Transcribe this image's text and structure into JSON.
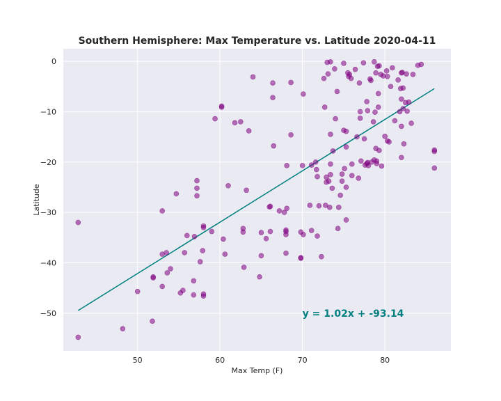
{
  "chart_data": {
    "type": "scatter",
    "title": "Southern Hemisphere: Max Temperature vs. Latitude 2020-04-11",
    "xlabel": "Max Temp (F)",
    "ylabel": "Latitude",
    "xlim": [
      41,
      88
    ],
    "ylim": [
      -57.5,
      2.5
    ],
    "xticks": [
      50,
      60,
      70,
      80
    ],
    "yticks": [
      0,
      -10,
      -20,
      -30,
      -40,
      -50
    ],
    "grid": true,
    "background": "#eaeaf2",
    "point_color": "#800080",
    "line_color": "#008080",
    "points": [
      [
        42.8,
        -32
      ],
      [
        42.8,
        -54.8
      ],
      [
        48.2,
        -53.1
      ],
      [
        50.0,
        -45.7
      ],
      [
        51.8,
        -51.6
      ],
      [
        51.9,
        -42.8
      ],
      [
        51.9,
        -43.0
      ],
      [
        53.0,
        -29.7
      ],
      [
        53.0,
        -38.3
      ],
      [
        53.0,
        -44.7
      ],
      [
        53.5,
        -38.0
      ],
      [
        53.6,
        -42.0
      ],
      [
        54.0,
        -41.2
      ],
      [
        54.7,
        -26.3
      ],
      [
        55.2,
        -46.0
      ],
      [
        55.5,
        -45.5
      ],
      [
        55.7,
        -38.0
      ],
      [
        56.0,
        -34.6
      ],
      [
        56.8,
        -43.6
      ],
      [
        56.8,
        -46.4
      ],
      [
        56.9,
        -34.8
      ],
      [
        57.2,
        -23.7
      ],
      [
        57.2,
        -25.2
      ],
      [
        57.2,
        -26.7
      ],
      [
        57.6,
        -39.8
      ],
      [
        57.9,
        -37.6
      ],
      [
        58.0,
        -32.7
      ],
      [
        58.0,
        -33.0
      ],
      [
        58.0,
        -46.2
      ],
      [
        58.0,
        -46.6
      ],
      [
        59.0,
        -33.8
      ],
      [
        59.4,
        -11.4
      ],
      [
        60.2,
        -8.9
      ],
      [
        60.2,
        -9.1
      ],
      [
        60.4,
        -35.3
      ],
      [
        60.6,
        -38.3
      ],
      [
        61.0,
        -24.7
      ],
      [
        61.8,
        -12.2
      ],
      [
        62.5,
        -12.0
      ],
      [
        62.8,
        -33.2
      ],
      [
        62.8,
        -33.9
      ],
      [
        62.9,
        -40.9
      ],
      [
        63.2,
        -25.6
      ],
      [
        63.5,
        -13.8
      ],
      [
        64.0,
        -3.1
      ],
      [
        64.8,
        -42.8
      ],
      [
        65.0,
        -34.0
      ],
      [
        65.0,
        -38.6
      ],
      [
        65.6,
        -35.2
      ],
      [
        66.0,
        -28.9
      ],
      [
        66.1,
        -28.8
      ],
      [
        66.1,
        -33.8
      ],
      [
        66.4,
        -4.3
      ],
      [
        66.4,
        -7.2
      ],
      [
        66.5,
        -16.8
      ],
      [
        67.2,
        -29.7
      ],
      [
        67.8,
        -30.0
      ],
      [
        68.0,
        -33.5
      ],
      [
        68.0,
        -33.8
      ],
      [
        68.0,
        -34.4
      ],
      [
        68.0,
        -38.1
      ],
      [
        68.1,
        -20.7
      ],
      [
        68.1,
        -29.2
      ],
      [
        68.6,
        -4.2
      ],
      [
        68.6,
        -14.6
      ],
      [
        69.8,
        -33.9
      ],
      [
        69.8,
        -39.0
      ],
      [
        69.8,
        -39.1
      ],
      [
        70.0,
        -20.7
      ],
      [
        70.1,
        -6.5
      ],
      [
        70.1,
        -34.4
      ],
      [
        70.9,
        -28.6
      ],
      [
        71.1,
        -20.6
      ],
      [
        71.1,
        -33.6
      ],
      [
        71.6,
        -20.0
      ],
      [
        71.7,
        -21.5
      ],
      [
        71.8,
        -22.9
      ],
      [
        71.8,
        -34.7
      ],
      [
        72.0,
        -28.7
      ],
      [
        72.3,
        -38.8
      ],
      [
        72.6,
        -3.4
      ],
      [
        72.7,
        -9.1
      ],
      [
        72.8,
        -28.6
      ],
      [
        72.9,
        -23.0
      ],
      [
        72.9,
        -24.0
      ],
      [
        73.0,
        -0.2
      ],
      [
        73.1,
        -2.5
      ],
      [
        73.2,
        -23.8
      ],
      [
        73.3,
        -29.0
      ],
      [
        73.4,
        -0.1
      ],
      [
        73.4,
        -14.5
      ],
      [
        73.4,
        -20.4
      ],
      [
        73.4,
        -22.5
      ],
      [
        73.6,
        -25.2
      ],
      [
        73.7,
        -17.8
      ],
      [
        73.9,
        -1.5
      ],
      [
        74.0,
        -11.4
      ],
      [
        74.2,
        -6.0
      ],
      [
        74.3,
        -33.2
      ],
      [
        74.4,
        -29.0
      ],
      [
        74.6,
        -26.6
      ],
      [
        74.8,
        -22.4
      ],
      [
        74.8,
        -23.8
      ],
      [
        75.0,
        -13.7
      ],
      [
        75.0,
        -0.4
      ],
      [
        75.1,
        -21.3
      ],
      [
        75.3,
        -13.9
      ],
      [
        75.3,
        -17.0
      ],
      [
        75.3,
        -25.0
      ],
      [
        75.3,
        -31.5
      ],
      [
        75.5,
        -2.3
      ],
      [
        75.6,
        -3.0
      ],
      [
        75.7,
        -2.6
      ],
      [
        75.9,
        -3.4
      ],
      [
        76.0,
        -20.4
      ],
      [
        76.0,
        -22.7
      ],
      [
        76.4,
        -1.6
      ],
      [
        76.6,
        -15.0
      ],
      [
        76.8,
        -23.2
      ],
      [
        76.9,
        -4.3
      ],
      [
        77.0,
        -10.0
      ],
      [
        77.0,
        -11.3
      ],
      [
        77.1,
        -19.8
      ],
      [
        77.4,
        -0.3
      ],
      [
        77.5,
        -15.4
      ],
      [
        77.6,
        -20.6
      ],
      [
        77.8,
        -8.0
      ],
      [
        77.8,
        -20.3
      ],
      [
        77.9,
        -9.8
      ],
      [
        77.9,
        -20.1
      ],
      [
        78.0,
        -20.7
      ],
      [
        78.2,
        -3.5
      ],
      [
        78.3,
        -3.8
      ],
      [
        78.4,
        -20.0
      ],
      [
        78.6,
        -12.0
      ],
      [
        78.7,
        -0.1
      ],
      [
        78.7,
        -19.6
      ],
      [
        78.8,
        -10.1
      ],
      [
        78.9,
        -2.3
      ],
      [
        78.9,
        -17.3
      ],
      [
        79.0,
        -19.8
      ],
      [
        79.0,
        -20.3
      ],
      [
        79.1,
        -1.0
      ],
      [
        79.2,
        -6.4
      ],
      [
        79.2,
        -9.1
      ],
      [
        79.3,
        -0.9
      ],
      [
        79.3,
        -17.7
      ],
      [
        79.5,
        -2.6
      ],
      [
        79.6,
        -20.8
      ],
      [
        79.8,
        -2.9
      ],
      [
        80.0,
        -14.9
      ],
      [
        80.2,
        -1.9
      ],
      [
        80.3,
        -3.0
      ],
      [
        80.3,
        -15.8
      ],
      [
        80.5,
        -16.0
      ],
      [
        80.7,
        -5.0
      ],
      [
        80.9,
        -1.3
      ],
      [
        81.2,
        -11.8
      ],
      [
        81.6,
        -3.7
      ],
      [
        81.8,
        -10.0
      ],
      [
        81.9,
        -5.4
      ],
      [
        82.0,
        -19.1
      ],
      [
        82.0,
        -2.3
      ],
      [
        82.0,
        -7.5
      ],
      [
        82.0,
        -12.9
      ],
      [
        82.1,
        -2.2
      ],
      [
        82.2,
        -5.3
      ],
      [
        82.2,
        -9.4
      ],
      [
        82.3,
        -16.4
      ],
      [
        82.5,
        -8.2
      ],
      [
        82.6,
        -2.5
      ],
      [
        82.7,
        -9.9
      ],
      [
        82.9,
        -8.1
      ],
      [
        83.2,
        -12.3
      ],
      [
        83.4,
        -2.6
      ],
      [
        84.0,
        -0.8
      ],
      [
        84.4,
        -0.6
      ],
      [
        86.0,
        -17.6
      ],
      [
        86.0,
        -17.9
      ],
      [
        86.0,
        -21.2
      ]
    ],
    "regression": {
      "slope": 1.02,
      "intercept": -93.14,
      "x_range": [
        42.8,
        86.0
      ]
    },
    "annotation": {
      "text": "y = 1.02x + -93.14",
      "x": 70,
      "y": -50
    }
  }
}
